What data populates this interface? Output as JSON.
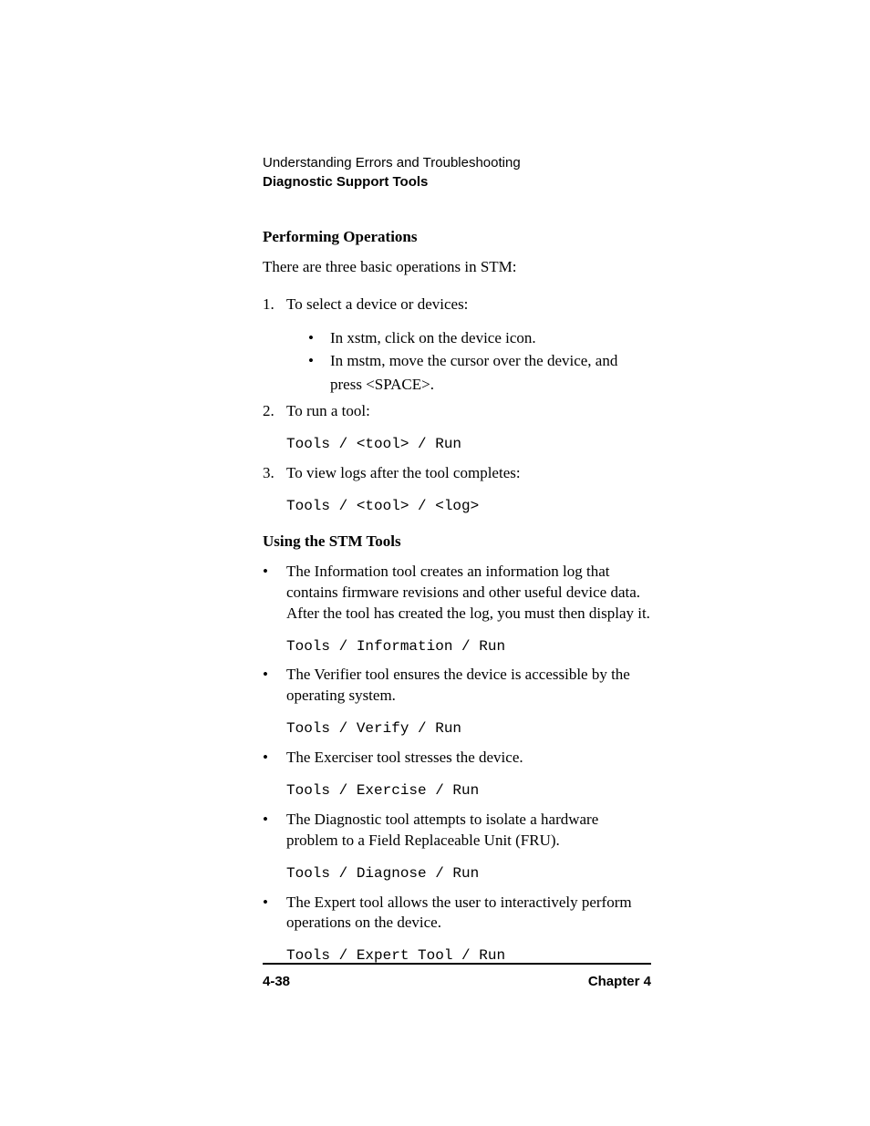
{
  "header": {
    "line1": "Understanding Errors and Troubleshooting",
    "line2": "Diagnostic Support Tools"
  },
  "section1": {
    "heading": "Performing Operations",
    "intro": "There are three basic operations in STM:",
    "list": [
      {
        "text": "To select a device or devices:",
        "sublist": [
          "In xstm, click on the device icon.",
          "In mstm, move the cursor over the device, and press <SPACE>."
        ]
      },
      {
        "text": "To run a tool:",
        "code": "Tools / <tool> / Run"
      },
      {
        "text": "To view logs after the tool completes:",
        "code": "Tools / <tool> / <log>"
      }
    ]
  },
  "section2": {
    "heading": "Using the STM Tools",
    "bullets": [
      {
        "text": "The Information tool creates an information log that contains firmware revisions and other useful device data. After the tool has created the log, you must then display it.",
        "code": "Tools / Information / Run"
      },
      {
        "text": "The Verifier tool ensures the device is accessible by the operating system.",
        "code": "Tools / Verify / Run"
      },
      {
        "text": "The Exerciser tool stresses the device.",
        "code": "Tools / Exercise / Run"
      },
      {
        "text": "The Diagnostic tool attempts to isolate a hardware problem to a Field Replaceable Unit (FRU).",
        "code": "Tools / Diagnose / Run"
      },
      {
        "text": "The Expert tool allows the user to interactively perform operations on the device.",
        "code": "Tools / Expert Tool / Run"
      }
    ]
  },
  "footer": {
    "pageNum": "4-38",
    "chapter": "Chapter 4"
  }
}
